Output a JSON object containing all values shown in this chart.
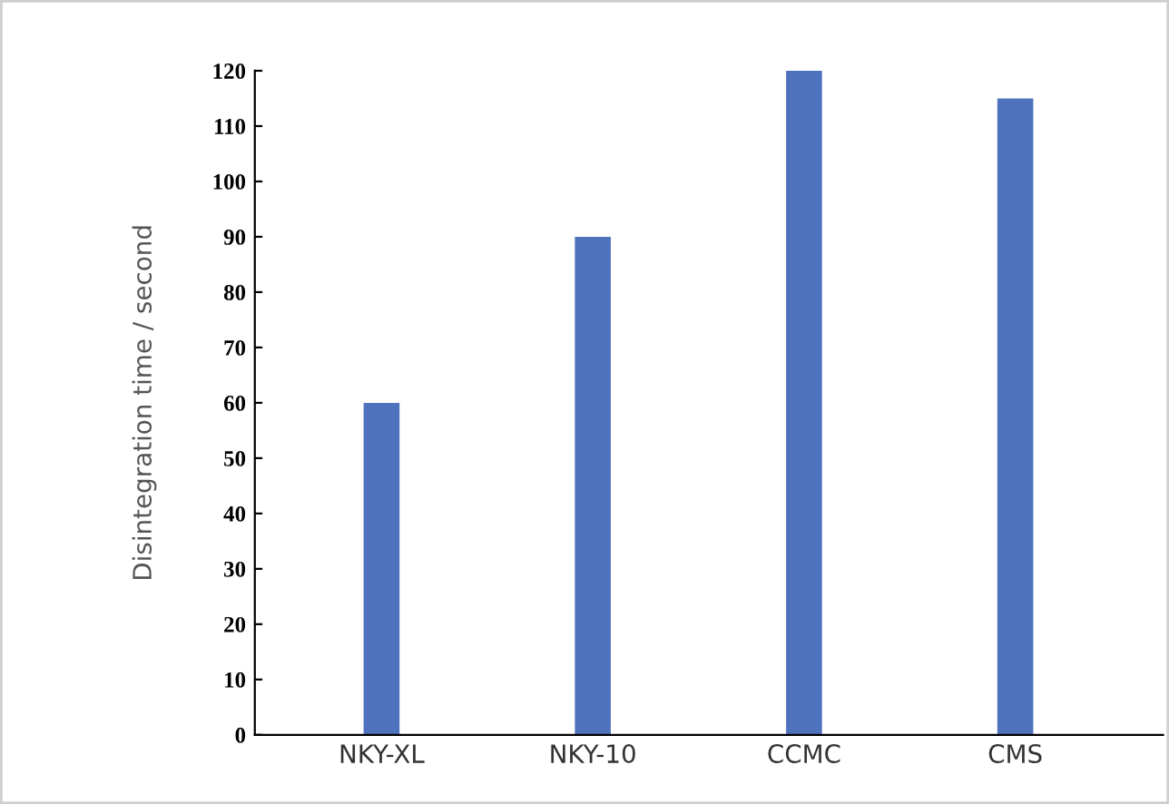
{
  "chart_data": {
    "type": "bar",
    "ylabel": "Disintegration time / second",
    "categories": [
      "NKY-XL",
      "NKY-10",
      "CCMC",
      "CMS"
    ],
    "values": [
      60,
      90,
      120,
      115
    ],
    "color": "#4f72be",
    "ylim": [
      0,
      120
    ],
    "yticks": [
      0,
      10,
      20,
      30,
      40,
      50,
      60,
      70,
      80,
      90,
      100,
      110,
      120
    ],
    "grid": false,
    "legend": false
  }
}
